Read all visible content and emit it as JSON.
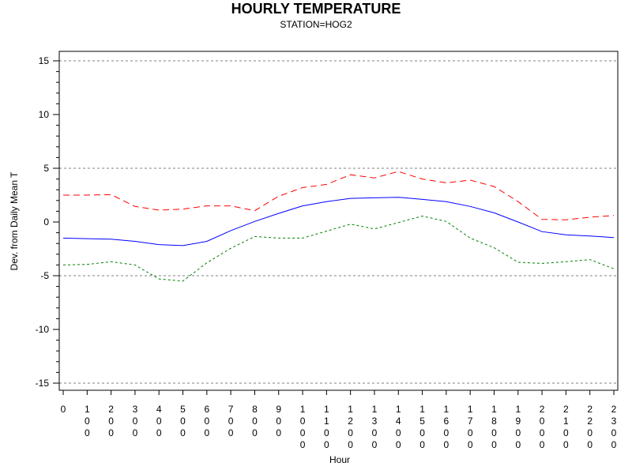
{
  "chart_data": {
    "type": "line",
    "title": "HOURLY TEMPERATURE",
    "subtitle": "STATION=HOG2",
    "xlabel": "Hour",
    "ylabel": "Dev. from Daily Mean T",
    "x": [
      0,
      100,
      200,
      300,
      400,
      500,
      600,
      700,
      800,
      900,
      1000,
      1100,
      1200,
      1300,
      1400,
      1500,
      1600,
      1700,
      1800,
      1900,
      2000,
      2100,
      2200,
      2300
    ],
    "x_tick_labels": [
      "0",
      "100",
      "200",
      "300",
      "400",
      "500",
      "600",
      "700",
      "800",
      "900",
      "1000",
      "1100",
      "1200",
      "1300",
      "1400",
      "1500",
      "1600",
      "1700",
      "1800",
      "1900",
      "2000",
      "2100",
      "2200",
      "2300"
    ],
    "ylim": [
      -15,
      15
    ],
    "y_ticks": [
      -15,
      -10,
      -5,
      0,
      5,
      10,
      15
    ],
    "reference_lines": [
      -15,
      -5,
      5,
      15
    ],
    "grid": false,
    "series": [
      {
        "color": "#0000ff",
        "style": "solid",
        "values": [
          -1.5,
          -1.55,
          -1.6,
          -1.8,
          -2.1,
          -2.2,
          -1.8,
          -0.8,
          0.05,
          0.8,
          1.5,
          1.9,
          2.2,
          2.25,
          2.3,
          2.1,
          1.9,
          1.45,
          0.85,
          0.0,
          -0.9,
          -1.2,
          -1.3,
          -1.45
        ]
      },
      {
        "color": "#ff0000",
        "style": "dashed",
        "values": [
          2.5,
          2.5,
          2.55,
          1.45,
          1.1,
          1.2,
          1.5,
          1.5,
          1.05,
          2.4,
          3.2,
          3.5,
          4.4,
          4.1,
          4.7,
          4.0,
          3.65,
          3.9,
          3.3,
          1.9,
          0.25,
          0.2,
          0.45,
          0.6
        ]
      },
      {
        "color": "#008000",
        "style": "dotted",
        "values": [
          -4.0,
          -3.95,
          -3.7,
          -4.0,
          -5.3,
          -5.5,
          -3.8,
          -2.45,
          -1.35,
          -1.5,
          -1.5,
          -0.85,
          -0.2,
          -0.65,
          -0.05,
          0.55,
          0.05,
          -1.5,
          -2.4,
          -3.75,
          -3.85,
          -3.7,
          -3.5,
          -4.35
        ]
      }
    ]
  }
}
